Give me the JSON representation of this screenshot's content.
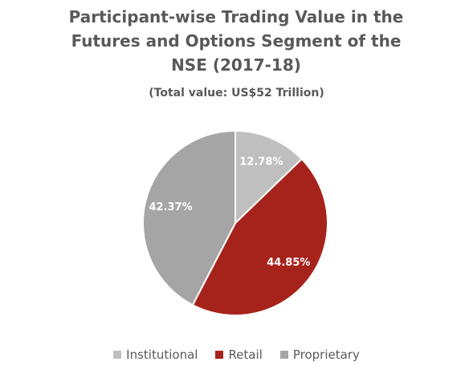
{
  "chart_data": {
    "type": "pie",
    "title": "Participant-wise Trading Value in the Futures and Options Segment of the NSE (2017-18)",
    "subtitle": "(Total value: US$52 Trillion)",
    "categories": [
      "Institutional",
      "Retail",
      "Proprietary"
    ],
    "values": [
      12.78,
      44.85,
      42.37
    ],
    "value_labels": [
      "12.78%",
      "44.85%",
      "42.37%"
    ],
    "colors": [
      "#bfbfbf",
      "#a6231c",
      "#a5a5a5"
    ],
    "legend": "bottom"
  }
}
